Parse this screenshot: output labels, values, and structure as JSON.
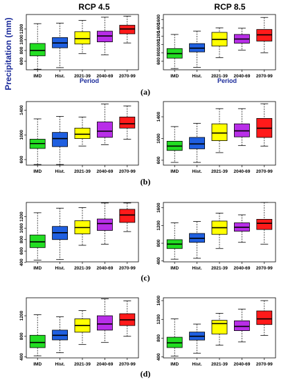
{
  "titles": {
    "left": "RCP 4.5",
    "right": "RCP 8.5"
  },
  "axis": {
    "ylabel": "Precipitation (mm)",
    "xlabel": "Period"
  },
  "row_labels": [
    "(a)",
    "(b)",
    "(c)",
    "(d)"
  ],
  "colors": {
    "IMD": "#22dd22",
    "Hist.": "#1f5fe0",
    "2021-39": "#ffff00",
    "2040-69": "#b82ee8",
    "2070-99": "#ff1a1a"
  },
  "chart_data": [
    {
      "type": "box",
      "row": "(a)",
      "scenario": "RCP 4.5",
      "categories": [
        "IMD",
        "Hist.",
        "2021-39",
        "2040-69",
        "2070-99"
      ],
      "yticks": [
        600,
        800,
        1000,
        1200
      ],
      "ylim": [
        440,
        1470
      ],
      "boxes": [
        {
          "min": 450,
          "q1": 700,
          "median": 800,
          "q3": 930,
          "max": 1300
        },
        {
          "min": 480,
          "q1": 850,
          "median": 940,
          "q3": 1040,
          "max": 1310
        },
        {
          "min": 740,
          "q1": 920,
          "median": 1020,
          "q3": 1150,
          "max": 1360
        },
        {
          "min": 720,
          "q1": 960,
          "median": 1070,
          "q3": 1160,
          "max": 1420
        },
        {
          "min": 940,
          "q1": 1110,
          "median": 1200,
          "q3": 1270,
          "max": 1440
        }
      ]
    },
    {
      "type": "box",
      "row": "(a)",
      "scenario": "RCP 8.5",
      "categories": [
        "IMD",
        "Hist.",
        "2021-39",
        "2040-69",
        "2070-99"
      ],
      "yticks": [
        600,
        800,
        1000,
        1200,
        1400,
        1600
      ],
      "ylim": [
        390,
        1720
      ],
      "boxes": [
        {
          "min": 420,
          "q1": 670,
          "median": 780,
          "q3": 900,
          "max": 1240
        },
        {
          "min": 450,
          "q1": 820,
          "median": 910,
          "q3": 1020,
          "max": 1320
        },
        {
          "min": 680,
          "q1": 960,
          "median": 1120,
          "q3": 1290,
          "max": 1400
        },
        {
          "min": 860,
          "q1": 1030,
          "median": 1130,
          "q3": 1240,
          "max": 1390
        },
        {
          "min": 800,
          "q1": 1080,
          "median": 1230,
          "q3": 1360,
          "max": 1650
        }
      ]
    },
    {
      "type": "box",
      "row": "(b)",
      "scenario": "RCP 4.5",
      "categories": [
        "IMD",
        "Hist.",
        "2021-39",
        "2040-69",
        "2070-99"
      ],
      "yticks": [
        600,
        1000,
        1400
      ],
      "ylim": [
        510,
        1540
      ],
      "boxes": [
        {
          "min": 520,
          "q1": 780,
          "median": 860,
          "q3": 930,
          "max": 1260
        },
        {
          "min": 520,
          "q1": 810,
          "median": 940,
          "q3": 1040,
          "max": 1300
        },
        {
          "min": 820,
          "q1": 940,
          "median": 1010,
          "q3": 1110,
          "max": 1290
        },
        {
          "min": 840,
          "q1": 960,
          "median": 1060,
          "q3": 1210,
          "max": 1500
        },
        {
          "min": 930,
          "q1": 1110,
          "median": 1180,
          "q3": 1290,
          "max": 1470
        }
      ]
    },
    {
      "type": "box",
      "row": "(b)",
      "scenario": "RCP 8.5",
      "categories": [
        "IMD",
        "Hist.",
        "2021-39",
        "2040-69",
        "2070-99"
      ],
      "yticks": [
        600,
        1000,
        1400
      ],
      "ylim": [
        510,
        1680
      ],
      "boxes": [
        {
          "min": 560,
          "q1": 780,
          "median": 860,
          "q3": 950,
          "max": 1220
        },
        {
          "min": 560,
          "q1": 810,
          "median": 900,
          "q3": 1020,
          "max": 1280
        },
        {
          "min": 740,
          "q1": 960,
          "median": 1100,
          "q3": 1270,
          "max": 1550
        },
        {
          "min": 870,
          "q1": 1030,
          "median": 1140,
          "q3": 1270,
          "max": 1550
        },
        {
          "min": 860,
          "q1": 1020,
          "median": 1190,
          "q3": 1370,
          "max": 1640
        }
      ]
    },
    {
      "type": "box",
      "row": "(c)",
      "scenario": "RCP 4.5",
      "categories": [
        "IMD",
        "Hist.",
        "2021-39",
        "2040-69",
        "2070-99"
      ],
      "yticks": [
        400,
        600,
        800,
        1000,
        1200
      ],
      "ylim": [
        410,
        1450
      ],
      "boxes": [
        {
          "min": 440,
          "q1": 660,
          "median": 760,
          "q3": 880,
          "max": 1270
        },
        {
          "min": 450,
          "q1": 800,
          "median": 920,
          "q3": 1030,
          "max": 1350
        },
        {
          "min": 700,
          "q1": 900,
          "median": 1010,
          "q3": 1130,
          "max": 1360
        },
        {
          "min": 720,
          "q1": 960,
          "median": 1080,
          "q3": 1160,
          "max": 1440
        },
        {
          "min": 940,
          "q1": 1100,
          "median": 1230,
          "q3": 1330,
          "max": 1440
        }
      ]
    },
    {
      "type": "box",
      "row": "(c)",
      "scenario": "RCP 8.5",
      "categories": [
        "IMD",
        "Hist.",
        "2021-39",
        "2040-69",
        "2070-99"
      ],
      "yticks": [
        400,
        800,
        1200,
        1600
      ],
      "ylim": [
        380,
        1720
      ],
      "boxes": [
        {
          "min": 440,
          "q1": 680,
          "median": 780,
          "q3": 880,
          "max": 1260
        },
        {
          "min": 460,
          "q1": 820,
          "median": 910,
          "q3": 1020,
          "max": 1290
        },
        {
          "min": 680,
          "q1": 1000,
          "median": 1150,
          "q3": 1300,
          "max": 1480
        },
        {
          "min": 820,
          "q1": 1070,
          "median": 1160,
          "q3": 1260,
          "max": 1440
        },
        {
          "min": 780,
          "q1": 1110,
          "median": 1250,
          "q3": 1340,
          "max": 1720
        }
      ]
    },
    {
      "type": "box",
      "row": "(d)",
      "scenario": "RCP 4.5",
      "categories": [
        "IMD",
        "Hist.",
        "2021-39",
        "2040-69",
        "2070-99"
      ],
      "yticks": [
        400,
        800,
        1200
      ],
      "ylim": [
        380,
        1550
      ],
      "boxes": [
        {
          "min": 420,
          "q1": 580,
          "median": 680,
          "q3": 820,
          "max": 1220
        },
        {
          "min": 480,
          "q1": 730,
          "median": 820,
          "q3": 920,
          "max": 1180
        },
        {
          "min": 640,
          "q1": 880,
          "median": 1010,
          "q3": 1140,
          "max": 1300
        },
        {
          "min": 680,
          "q1": 920,
          "median": 1040,
          "q3": 1200,
          "max": 1530
        },
        {
          "min": 800,
          "q1": 1010,
          "median": 1120,
          "q3": 1240,
          "max": 1490
        }
      ]
    },
    {
      "type": "box",
      "row": "(d)",
      "scenario": "RCP 8.5",
      "categories": [
        "IMD",
        "Hist.",
        "2021-39",
        "2040-69",
        "2070-99"
      ],
      "yticks": [
        400,
        800,
        1200,
        1600
      ],
      "ylim": [
        380,
        1660
      ],
      "boxes": [
        {
          "min": 420,
          "q1": 600,
          "median": 700,
          "q3": 820,
          "max": 1210
        },
        {
          "min": 480,
          "q1": 760,
          "median": 840,
          "q3": 930,
          "max": 1100
        },
        {
          "min": 650,
          "q1": 890,
          "median": 1110,
          "q3": 1180,
          "max": 1330
        },
        {
          "min": 720,
          "q1": 960,
          "median": 1050,
          "q3": 1170,
          "max": 1420
        },
        {
          "min": 860,
          "q1": 1090,
          "median": 1210,
          "q3": 1380,
          "max": 1600
        }
      ]
    }
  ]
}
